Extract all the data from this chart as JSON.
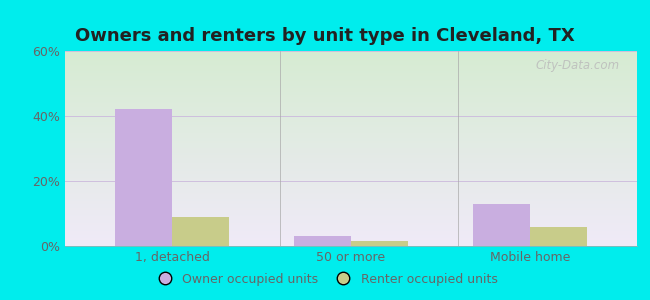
{
  "title": "Owners and renters by unit type in Cleveland, TX",
  "categories": [
    "1, detached",
    "50 or more",
    "Mobile home"
  ],
  "owner_values": [
    42,
    3,
    13
  ],
  "renter_values": [
    9,
    1.5,
    6
  ],
  "owner_color": "#c9aee0",
  "renter_color": "#c8cc8a",
  "ylim": [
    0,
    60
  ],
  "yticks": [
    0,
    20,
    40,
    60
  ],
  "ytick_labels": [
    "0%",
    "20%",
    "40%",
    "60%"
  ],
  "background_color": "#00eded",
  "plot_bg_color_topleft": "#d6ecd2",
  "plot_bg_color_topright": "#e8f0e8",
  "plot_bg_color_bottom": "#f0eaf8",
  "bar_width": 0.32,
  "title_fontsize": 13,
  "watermark": "City-Data.com",
  "legend_owner": "Owner occupied units",
  "legend_renter": "Renter occupied units",
  "tick_color": "#666666",
  "grid_color": "#ccbbdd",
  "title_color": "#222222"
}
